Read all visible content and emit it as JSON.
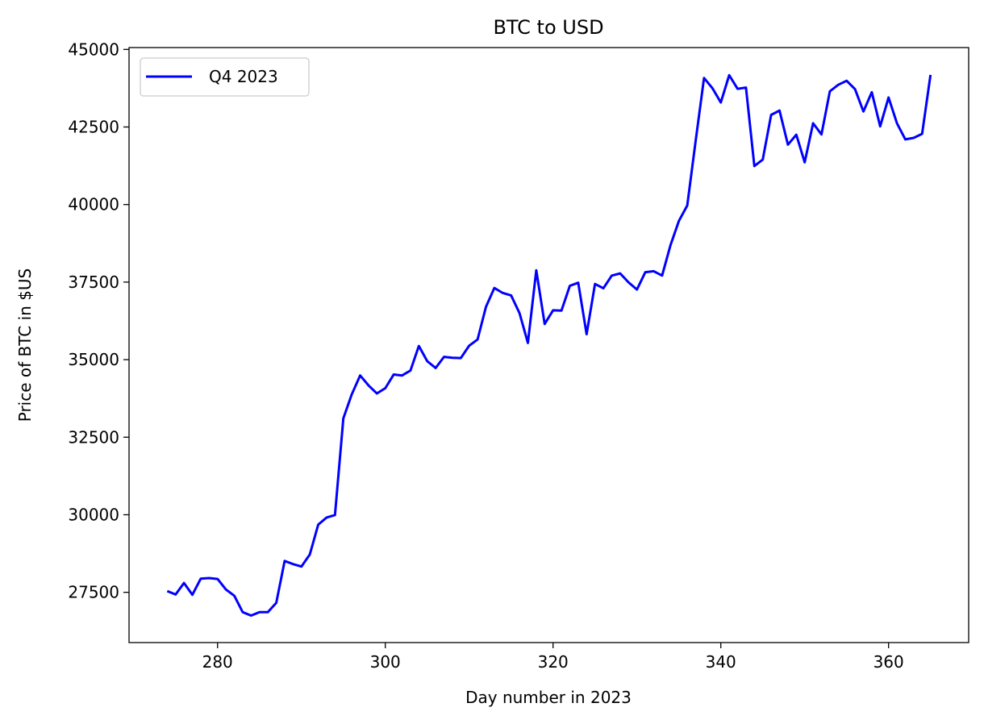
{
  "chart_data": {
    "type": "line",
    "title": "BTC to USD",
    "xlabel": "Day number in 2023",
    "ylabel": "Price of BTC in $US",
    "xlim": [
      269.45,
      369.55
    ],
    "ylim": [
      25880,
      45060
    ],
    "x_ticks": [
      280,
      300,
      320,
      340,
      360
    ],
    "y_ticks": [
      27500,
      30000,
      32500,
      35000,
      37500,
      40000,
      42500,
      45000
    ],
    "grid": false,
    "legend": "top-left",
    "colors": {
      "line": "#0000ff",
      "axes": "#000000",
      "legend_border": "#cccccc"
    },
    "series": [
      {
        "name": "Q4 2023",
        "x": [
          274,
          275,
          276,
          277,
          278,
          279,
          280,
          281,
          282,
          283,
          284,
          285,
          286,
          287,
          288,
          289,
          290,
          291,
          292,
          293,
          294,
          295,
          296,
          297,
          298,
          299,
          300,
          301,
          302,
          303,
          304,
          305,
          306,
          307,
          308,
          309,
          310,
          311,
          312,
          313,
          314,
          315,
          316,
          317,
          318,
          319,
          320,
          321,
          322,
          323,
          324,
          325,
          326,
          327,
          328,
          329,
          330,
          331,
          332,
          333,
          334,
          335,
          336,
          337,
          338,
          339,
          340,
          341,
          342,
          343,
          344,
          345,
          346,
          347,
          348,
          349,
          350,
          351,
          352,
          353,
          354,
          355,
          356,
          357,
          358,
          359,
          360,
          361,
          362,
          363,
          364,
          365
        ],
        "values": [
          27540,
          27430,
          27800,
          27420,
          27940,
          27960,
          27930,
          27590,
          27390,
          26860,
          26750,
          26860,
          26860,
          27160,
          28510,
          28410,
          28330,
          28720,
          29680,
          29910,
          29990,
          33110,
          33880,
          34490,
          34170,
          33910,
          34080,
          34520,
          34490,
          34650,
          35440,
          34950,
          34730,
          35090,
          35060,
          35050,
          35450,
          35650,
          36700,
          37310,
          37150,
          37070,
          36500,
          35540,
          37880,
          36150,
          36590,
          36580,
          37380,
          37480,
          35820,
          37440,
          37300,
          37710,
          37780,
          37490,
          37260,
          37820,
          37850,
          37710,
          38690,
          39470,
          39970,
          42050,
          44080,
          43750,
          43290,
          44170,
          43730,
          43770,
          41240,
          41450,
          42890,
          43030,
          41930,
          42250,
          41360,
          42620,
          42260,
          43650,
          43860,
          43990,
          43720,
          43000,
          43620,
          42520,
          43450,
          42620,
          42100,
          42150,
          42280,
          44180
        ]
      }
    ]
  }
}
